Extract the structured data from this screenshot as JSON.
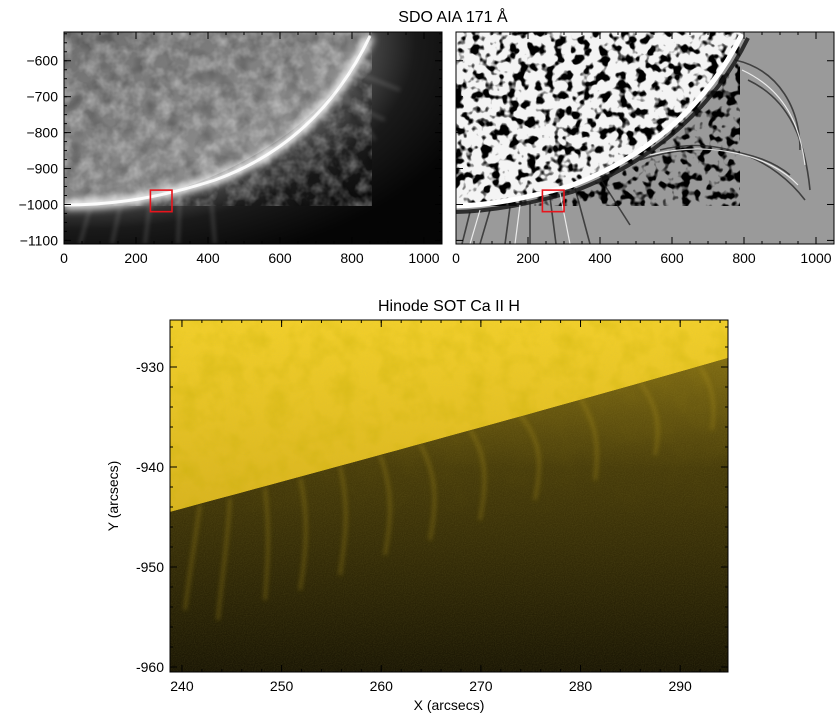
{
  "figure": {
    "top_title": "SDO AIA 171 Å",
    "bottom_title": "Hinode SOT Ca II H"
  },
  "colors": {
    "roi_box": "#e8141c",
    "hinode_bright": "#f2cf2a",
    "hinode_dark": "#1a1604"
  },
  "chart_data": [
    {
      "type": "heatmap",
      "name": "aia-intensity",
      "x_ticks": [
        0,
        200,
        400,
        600,
        800,
        1000
      ],
      "y_ticks": [
        -600,
        -700,
        -800,
        -900,
        -1000,
        -1100
      ],
      "xlim": [
        0,
        1050
      ],
      "ylim": [
        -1110,
        -520
      ],
      "box": {
        "x": [
          240,
          300
        ],
        "y": [
          -1020,
          -960
        ]
      }
    },
    {
      "type": "heatmap",
      "name": "aia-enhanced",
      "x_ticks": [
        0,
        200,
        400,
        600,
        800,
        1000
      ],
      "xlim": [
        0,
        1050
      ],
      "ylim": [
        -1110,
        -520
      ],
      "box": {
        "x": [
          240,
          300
        ],
        "y": [
          -1020,
          -960
        ]
      }
    },
    {
      "type": "heatmap",
      "name": "hinode-caiih",
      "xlabel": "X (arcsecs)",
      "ylabel": "Y (arcsecs)",
      "x_ticks": [
        240,
        250,
        260,
        270,
        280,
        290
      ],
      "y_ticks": [
        -930,
        -940,
        -950,
        -960
      ],
      "xlim": [
        238.8,
        294.8
      ],
      "ylim": [
        -960.5,
        -925.3
      ]
    }
  ]
}
